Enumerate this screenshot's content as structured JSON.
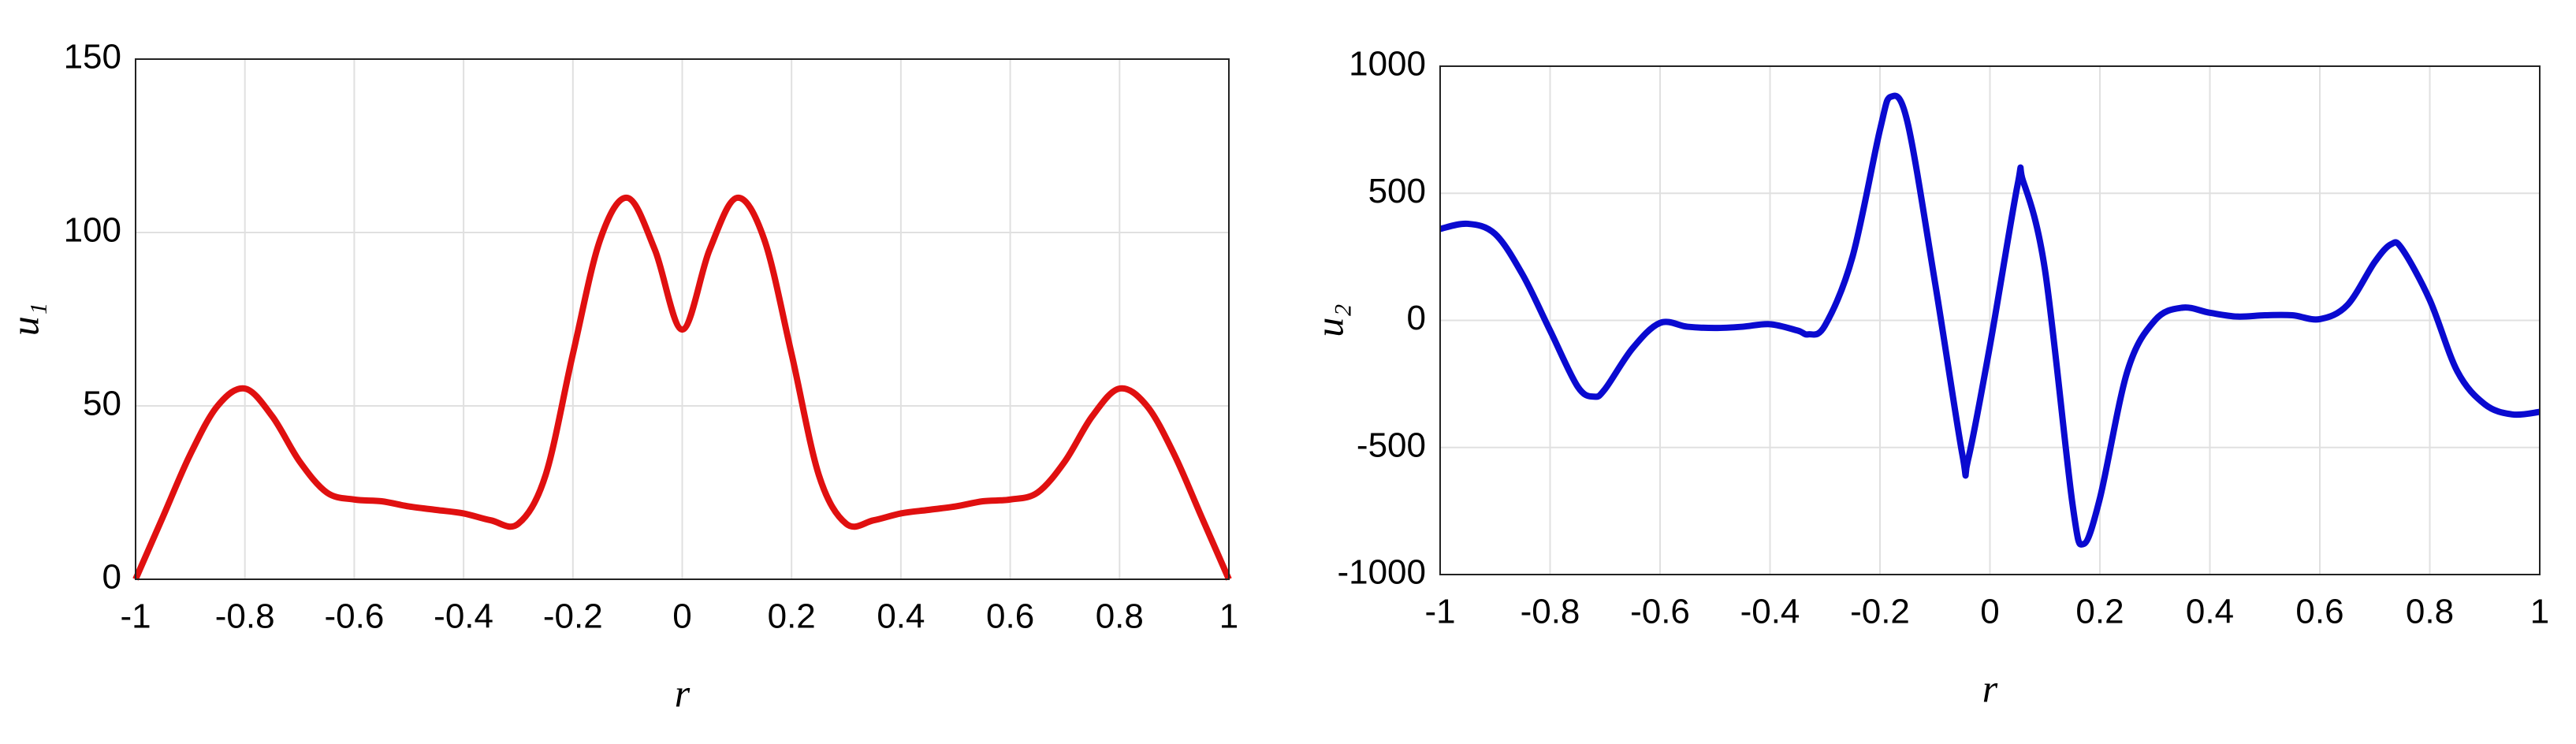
{
  "chart_data": [
    {
      "type": "line",
      "xlabel": "r",
      "ylabel": "u₁",
      "x": [
        -1,
        -0.95,
        -0.9,
        -0.85,
        -0.8,
        -0.75,
        -0.7,
        -0.65,
        -0.6,
        -0.55,
        -0.5,
        -0.45,
        -0.4,
        -0.35,
        -0.3,
        -0.25,
        -0.2,
        -0.15,
        -0.1,
        -0.05,
        0,
        0.05,
        0.1,
        0.15,
        0.2,
        0.25,
        0.3,
        0.35,
        0.4,
        0.45,
        0.5,
        0.55,
        0.6,
        0.65,
        0.7,
        0.75,
        0.8,
        0.85,
        0.9,
        0.95,
        1
      ],
      "series": [
        {
          "name": "u1",
          "color": "#e01010",
          "values": [
            0,
            18,
            36,
            50,
            55,
            47,
            34,
            25,
            23,
            22.5,
            21,
            20,
            19,
            17,
            16,
            30,
            65,
            98,
            110,
            95,
            72,
            95,
            110,
            98,
            65,
            30,
            16,
            17,
            19,
            20,
            21,
            22.5,
            23,
            25,
            34,
            47,
            55,
            50,
            36,
            18,
            0
          ]
        }
      ],
      "xlim": [
        -1,
        1
      ],
      "xticks": [
        -1,
        -0.8,
        -0.6,
        -0.4,
        -0.2,
        0,
        0.2,
        0.4,
        0.6,
        0.8,
        1
      ],
      "ylim": [
        0,
        150
      ],
      "yticks": [
        0,
        50,
        100,
        150
      ],
      "grid": true
    },
    {
      "type": "line",
      "xlabel": "r",
      "ylabel": "u₂",
      "x": [
        -1,
        -0.95,
        -0.9,
        -0.85,
        -0.8,
        -0.75,
        -0.72,
        -0.7,
        -0.65,
        -0.6,
        -0.55,
        -0.5,
        -0.45,
        -0.4,
        -0.35,
        -0.33,
        -0.3,
        -0.25,
        -0.2,
        -0.18,
        -0.15,
        -0.1,
        -0.05,
        -0.04,
        0,
        0.05,
        0.06,
        0.1,
        0.15,
        0.17,
        0.2,
        0.25,
        0.3,
        0.35,
        0.4,
        0.45,
        0.5,
        0.55,
        0.6,
        0.65,
        0.7,
        0.73,
        0.75,
        0.8,
        0.85,
        0.9,
        0.95,
        1
      ],
      "series": [
        {
          "name": "u2",
          "color": "#0a0ad0",
          "values": [
            360,
            380,
            340,
            180,
            -40,
            -260,
            -300,
            -270,
            -110,
            -10,
            -25,
            -30,
            -25,
            -15,
            -40,
            -55,
            -20,
            250,
            750,
            880,
            780,
            150,
            -530,
            -550,
            -100,
            530,
            550,
            200,
            -720,
            -880,
            -700,
            -200,
            0,
            50,
            30,
            15,
            20,
            20,
            5,
            60,
            230,
            300,
            280,
            80,
            -200,
            -330,
            -370,
            -360
          ]
        }
      ],
      "xlim": [
        -1,
        1
      ],
      "xticks": [
        -1,
        -0.8,
        -0.6,
        -0.4,
        -0.2,
        0,
        0.2,
        0.4,
        0.6,
        0.8,
        1
      ],
      "ylim": [
        -1000,
        1000
      ],
      "yticks": [
        -1000,
        -500,
        0,
        500,
        1000
      ],
      "grid": true
    }
  ]
}
